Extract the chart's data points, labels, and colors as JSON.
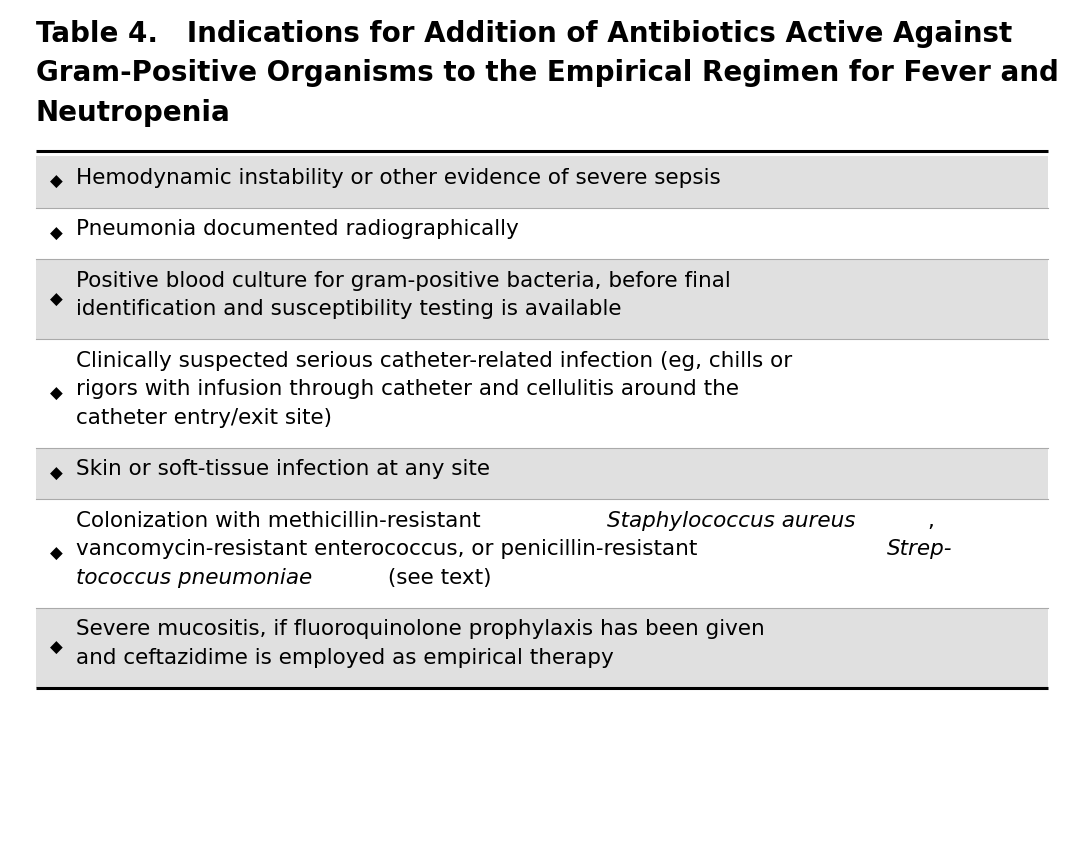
{
  "title_line1": "Table 4.   Indications for Addition of Antibiotics Active Against",
  "title_line2": "Gram-Positive Organisms to the Empirical Regimen for Fever and",
  "title_line3": "Neutropenia",
  "title_fontsize": 20,
  "title_fontweight": "bold",
  "bg_color": "#ffffff",
  "row_alt_color": "#e0e0e0",
  "row_plain_color": "#ffffff",
  "border_color": "#000000",
  "text_color": "#000000",
  "bullet": "◆",
  "bullet_fontsize": 12,
  "text_fontsize": 15.5,
  "rows": [
    {
      "lines": [
        [
          {
            "t": "Hemodynamic instability or other evidence of severe sepsis",
            "i": false
          }
        ]
      ],
      "shaded": true
    },
    {
      "lines": [
        [
          {
            "t": "Pneumonia documented radiographically",
            "i": false
          }
        ]
      ],
      "shaded": false
    },
    {
      "lines": [
        [
          {
            "t": "Positive blood culture for gram-positive bacteria, before final",
            "i": false
          }
        ],
        [
          {
            "t": "identification and susceptibility testing is available",
            "i": false
          }
        ]
      ],
      "shaded": true
    },
    {
      "lines": [
        [
          {
            "t": "Clinically suspected serious catheter-related infection (eg, chills or",
            "i": false
          }
        ],
        [
          {
            "t": "rigors with infusion through catheter and cellulitis around the",
            "i": false
          }
        ],
        [
          {
            "t": "catheter entry/exit site)",
            "i": false
          }
        ]
      ],
      "shaded": false
    },
    {
      "lines": [
        [
          {
            "t": "Skin or soft-tissue infection at any site",
            "i": false
          }
        ]
      ],
      "shaded": true
    },
    {
      "lines": [
        [
          {
            "t": "Colonization with methicillin-resistant ",
            "i": false
          },
          {
            "t": "Staphylococcus aureus",
            "i": true
          },
          {
            "t": ",",
            "i": false
          }
        ],
        [
          {
            "t": "vancomycin-resistant enterococcus, or penicillin-resistant ",
            "i": false
          },
          {
            "t": "Strep-",
            "i": true
          }
        ],
        [
          {
            "t": "tococcus pneumoniae",
            "i": true
          },
          {
            "t": " (see text)",
            "i": false
          }
        ]
      ],
      "shaded": false
    },
    {
      "lines": [
        [
          {
            "t": "Severe mucositis, if fluoroquinolone prophylaxis has been given",
            "i": false
          }
        ],
        [
          {
            "t": "and ceftazidime is employed as empirical therapy",
            "i": false
          }
        ]
      ],
      "shaded": true
    }
  ]
}
